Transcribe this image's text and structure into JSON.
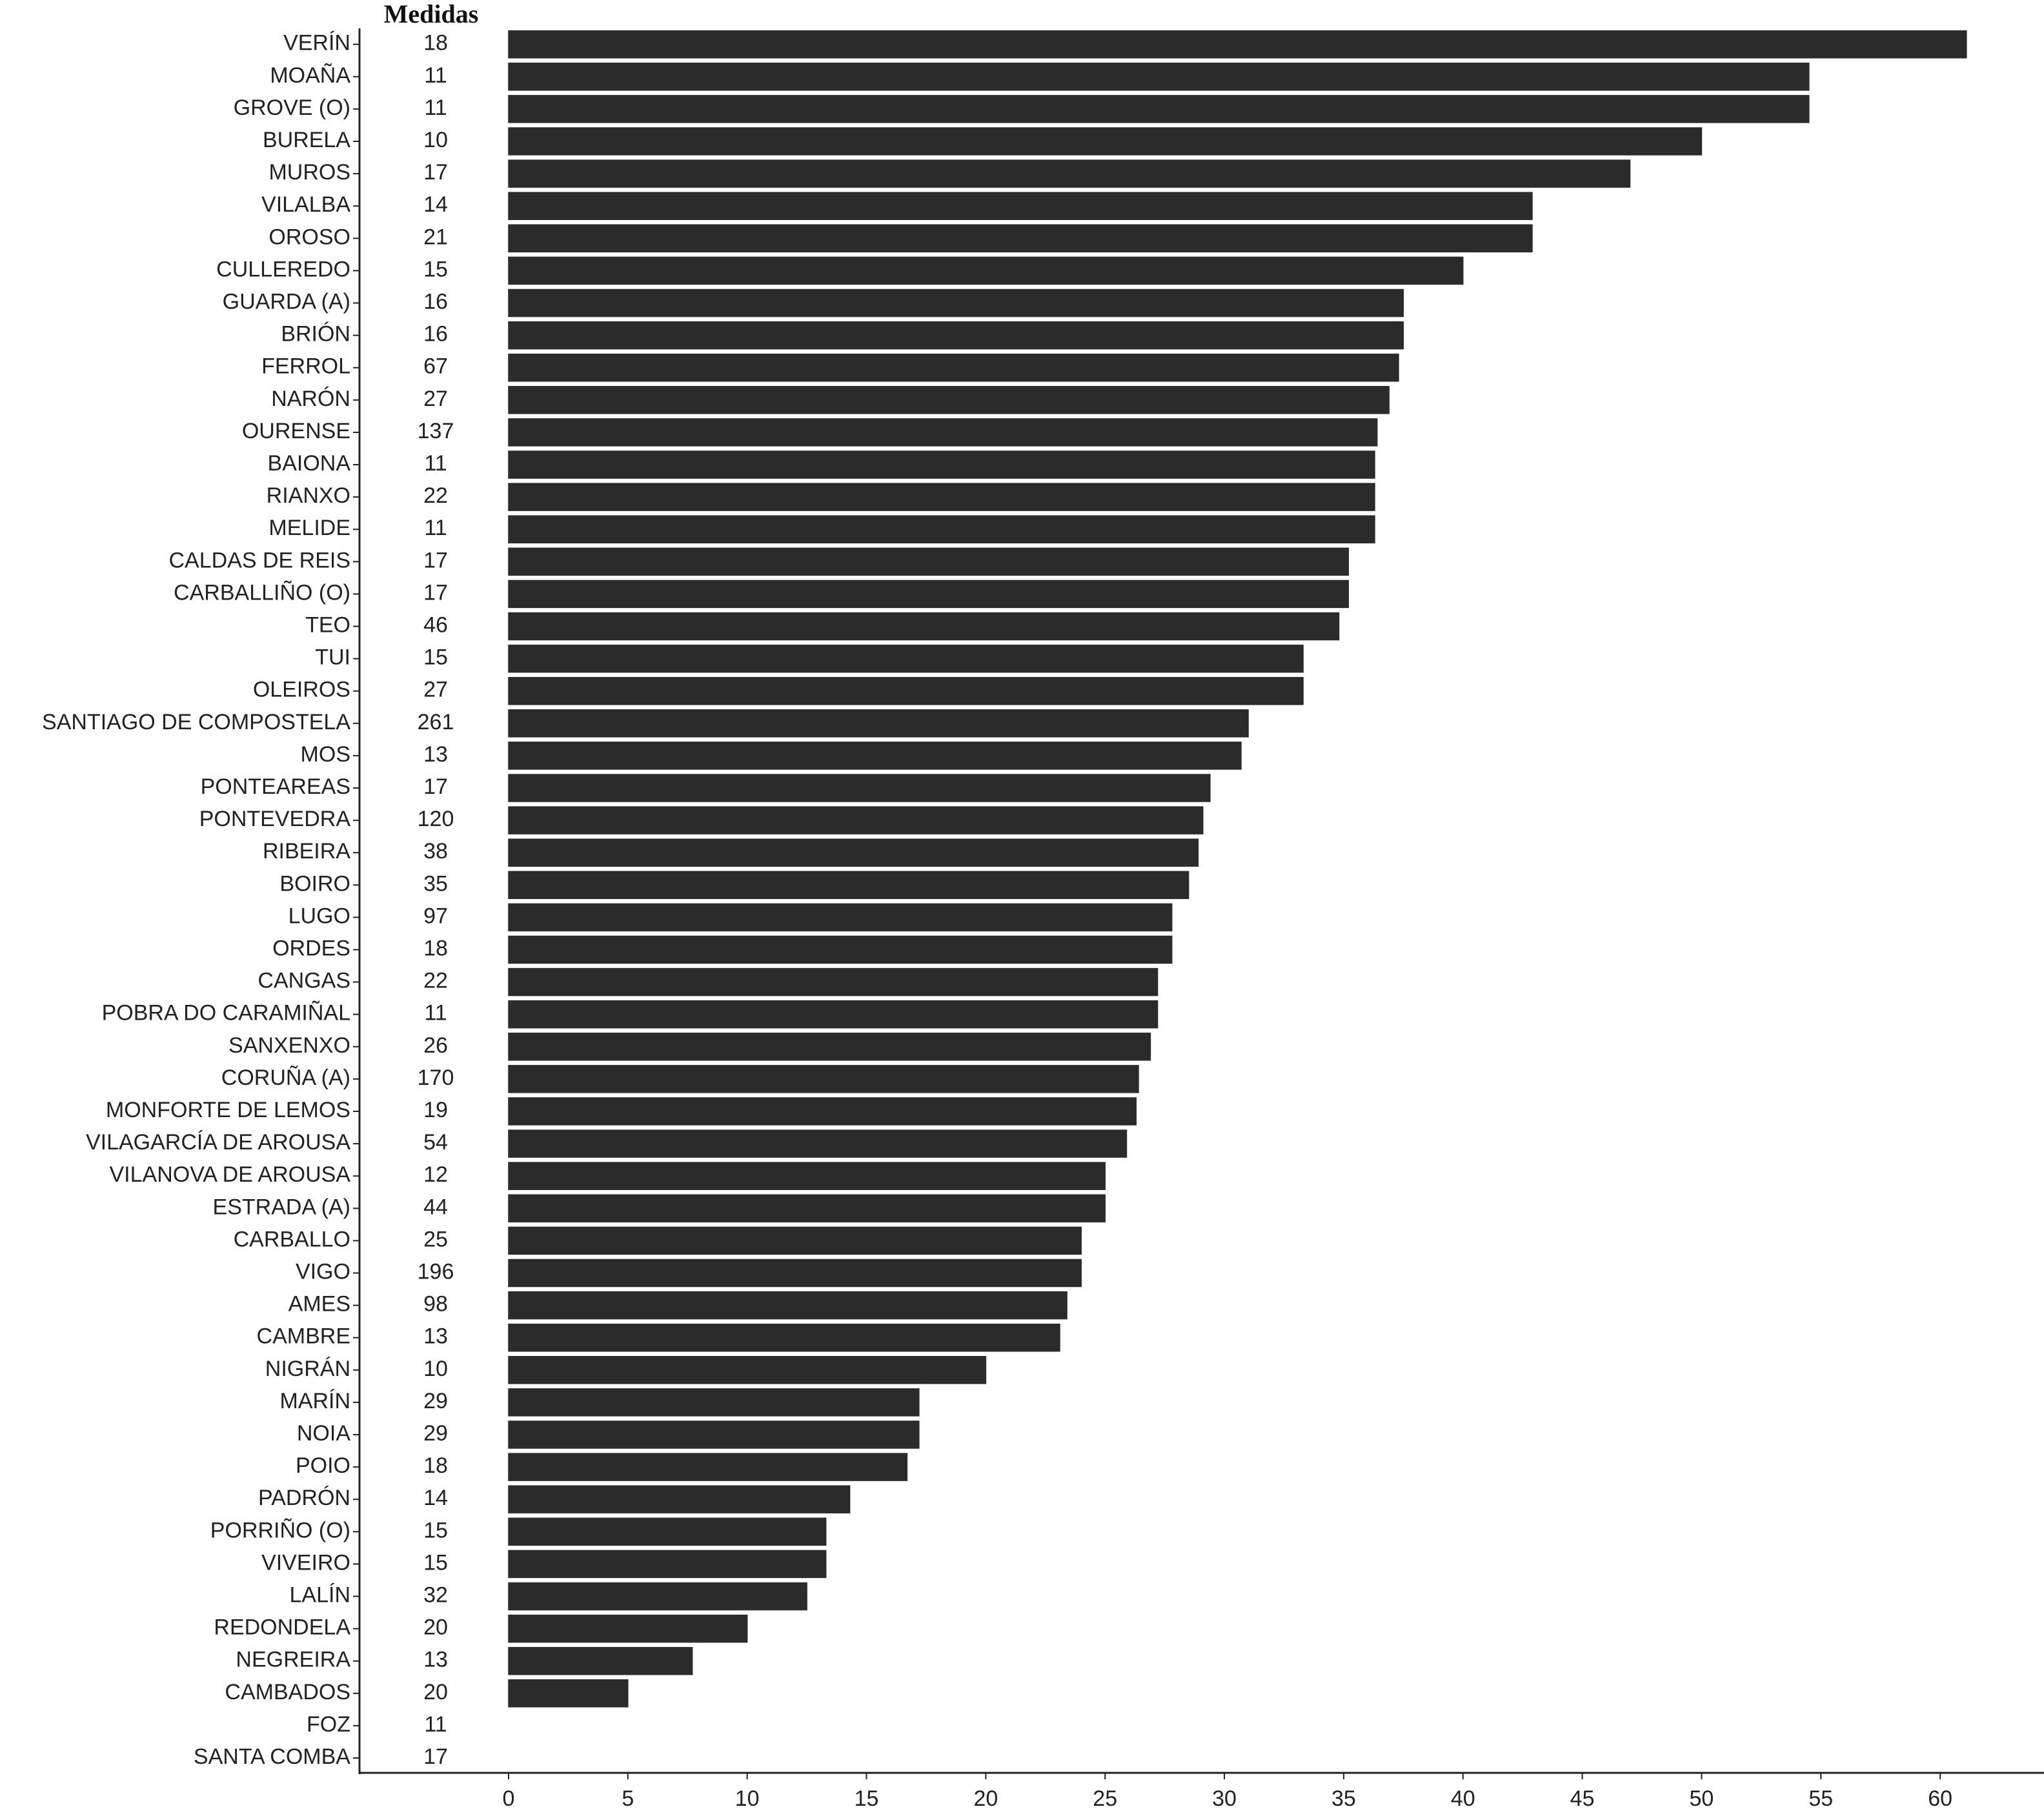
{
  "chart_data": {
    "type": "bar",
    "orientation": "horizontal",
    "color": "#2b2b2b",
    "categories": [
      "VERÍN",
      "MOAÑA",
      "GROVE (O)",
      "BURELA",
      "MUROS",
      "VILALBA",
      "OROSO",
      "CULLEREDO",
      "GUARDA (A)",
      "BRIÓN",
      "FERROL",
      "NARÓN",
      "OURENSE",
      "BAIONA",
      "RIANXO",
      "MELIDE",
      "CALDAS DE REIS",
      "CARBALLIÑO (O)",
      "TEO",
      "TUI",
      "OLEIROS",
      "SANTIAGO DE COMPOSTELA",
      "MOS",
      "PONTEAREAS",
      "PONTEVEDRA",
      "RIBEIRA",
      "BOIRO",
      "LUGO",
      "ORDES",
      "CANGAS",
      "POBRA DO CARAMIÑAL",
      "SANXENXO",
      "CORUÑA (A)",
      "MONFORTE DE LEMOS",
      "VILAGARCÍA DE AROUSA",
      "VILANOVA DE AROUSA",
      "ESTRADA (A)",
      "CARBALLO",
      "VIGO",
      "AMES",
      "CAMBRE",
      "NIGRÁN",
      "MARÍN",
      "NOIA",
      "POIO",
      "PADRÓN",
      "PORRIÑO (O)",
      "VIVEIRO",
      "LALÍN",
      "REDONDELA",
      "NEGREIRA",
      "CAMBADOS",
      "FOZ",
      "SANTA COMBA"
    ],
    "values": [
      61.1,
      54.5,
      54.5,
      50,
      47,
      42.9,
      42.9,
      40,
      37.5,
      37.5,
      37.3,
      36.9,
      36.4,
      36.3,
      36.3,
      36.3,
      35.2,
      35.2,
      34.8,
      33.3,
      33.3,
      31,
      30.7,
      29.4,
      29.1,
      28.9,
      28.5,
      27.8,
      27.8,
      27.2,
      27.2,
      26.9,
      26.4,
      26.3,
      25.9,
      25,
      25,
      24,
      24,
      23.4,
      23.1,
      20,
      17.2,
      17.2,
      16.7,
      14.3,
      13.3,
      13.3,
      12.5,
      10,
      7.7,
      5,
      0,
      0
    ],
    "medidas": {
      "label": "Medidas",
      "values": [
        18,
        11,
        11,
        10,
        17,
        14,
        21,
        15,
        16,
        16,
        67,
        27,
        137,
        11,
        22,
        11,
        17,
        17,
        46,
        15,
        27,
        261,
        13,
        17,
        120,
        38,
        35,
        97,
        18,
        22,
        11,
        26,
        170,
        19,
        54,
        12,
        44,
        25,
        196,
        98,
        13,
        10,
        29,
        29,
        18,
        14,
        15,
        15,
        32,
        20,
        13,
        20,
        11,
        17
      ]
    },
    "xlim": [
      0,
      64
    ],
    "xticks": [
      0,
      5,
      10,
      15,
      20,
      25,
      30,
      35,
      40,
      45,
      50,
      55,
      60
    ]
  }
}
